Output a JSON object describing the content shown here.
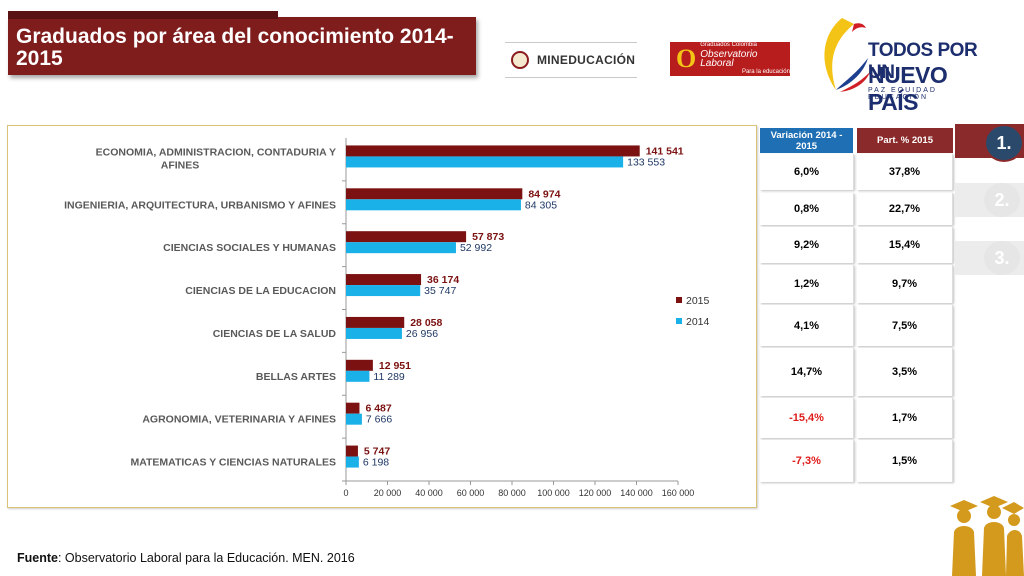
{
  "title": "Graduados por área del conocimiento 2014-2015",
  "logos": {
    "men": "MINEDUCACIÓN",
    "ole_line1": "Graduados Colombia",
    "ole_line2": "Observatorio Laboral",
    "ole_line3": "Para la educación",
    "gov_line1": "TODOS POR UN",
    "gov_line2": "NUEVO PAÍS",
    "gov_line3": "PAZ EQUIDAD EDUCACIÓN"
  },
  "chart_data": {
    "type": "bar",
    "orientation": "horizontal",
    "categories": [
      "ECONOMIA, ADMINISTRACION, CONTADURIA Y AFINES",
      "INGENIERIA, ARQUITECTURA, URBANISMO Y AFINES",
      "CIENCIAS SOCIALES Y HUMANAS",
      "CIENCIAS DE LA EDUCACION",
      "CIENCIAS DE LA SALUD",
      "BELLAS ARTES",
      "AGRONOMIA, VETERINARIA Y AFINES",
      "MATEMATICAS Y CIENCIAS NATURALES"
    ],
    "category_lines": [
      [
        "ECONOMIA, ADMINISTRACION, CONTADURIA Y",
        "AFINES"
      ],
      [
        "INGENIERIA, ARQUITECTURA, URBANISMO Y AFINES"
      ],
      [
        "CIENCIAS SOCIALES Y HUMANAS"
      ],
      [
        "CIENCIAS DE LA EDUCACION"
      ],
      [
        "CIENCIAS DE LA SALUD"
      ],
      [
        "BELLAS ARTES"
      ],
      [
        "AGRONOMIA, VETERINARIA Y AFINES"
      ],
      [
        "MATEMATICAS Y CIENCIAS NATURALES"
      ]
    ],
    "series": [
      {
        "name": "2015",
        "color": "#7b1111",
        "label_color": "#7b1111",
        "values": [
          141541,
          84974,
          57873,
          36174,
          28058,
          12951,
          6487,
          5747
        ],
        "labels": [
          "141 541",
          "84 974",
          "57 873",
          "36 174",
          "28 058",
          "12 951",
          "6 487",
          "5 747"
        ]
      },
      {
        "name": "2014",
        "color": "#1ab0e8",
        "label_color": "#1f3864",
        "values": [
          133553,
          84305,
          52992,
          35747,
          26956,
          11289,
          7666,
          6198
        ],
        "labels": [
          "133 553",
          "84 305",
          "52 992",
          "35 747",
          "26 956",
          "11 289",
          "7 666",
          "6 198"
        ]
      }
    ],
    "xlim": [
      0,
      160000
    ],
    "xticks": [
      0,
      20000,
      40000,
      60000,
      80000,
      100000,
      120000,
      140000,
      160000
    ],
    "xtick_labels": [
      "0",
      "20 000",
      "40 000",
      "60 000",
      "80 000",
      "100 000",
      "120 000",
      "140 000",
      "160 000"
    ],
    "grid": false,
    "legend_position": "right"
  },
  "table": {
    "headers": [
      "Variación 2014 - 2015",
      "Part. % 2015"
    ],
    "rows": [
      {
        "variacion": "6,0%",
        "part": "37,8%",
        "negative": false
      },
      {
        "variacion": "0,8%",
        "part": "22,7%",
        "negative": false
      },
      {
        "variacion": "9,2%",
        "part": "15,4%",
        "negative": false
      },
      {
        "variacion": "1,2%",
        "part": "9,7%",
        "negative": false
      },
      {
        "variacion": "4,1%",
        "part": "7,5%",
        "negative": false
      },
      {
        "variacion": "14,7%",
        "part": "3,5%",
        "negative": false
      },
      {
        "variacion": "-15,4%",
        "part": "1,7%",
        "negative": true
      },
      {
        "variacion": "-7,3%",
        "part": "1,5%",
        "negative": true
      }
    ]
  },
  "tabs": [
    {
      "label": "1.",
      "active": true
    },
    {
      "label": "2.",
      "active": false
    },
    {
      "label": "3.",
      "active": false
    }
  ],
  "source": {
    "label": "Fuente",
    "text": ": Observatorio Laboral para la Educación. MEN. 2016"
  }
}
